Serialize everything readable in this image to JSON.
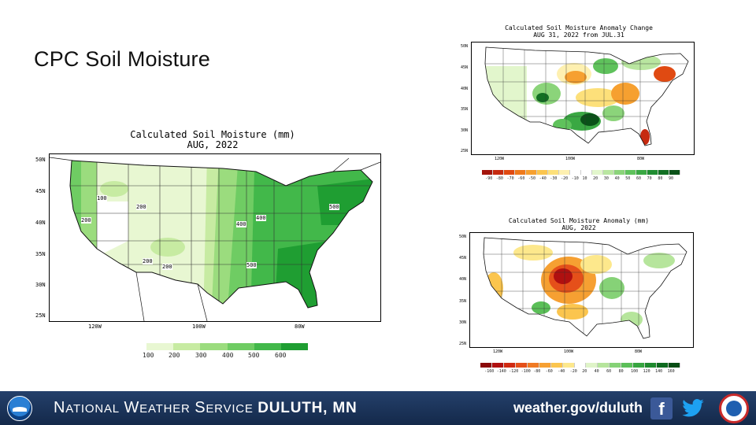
{
  "slide": {
    "title": "CPC Soil Moisture"
  },
  "maps": {
    "main": {
      "title_line1": "Calculated Soil Moisture (mm)",
      "title_line2": "AUG, 2022",
      "lat_labels": [
        "50N",
        "45N",
        "40N",
        "35N",
        "30N",
        "25N"
      ],
      "lon_labels": [
        "120W",
        "100W",
        "80W"
      ],
      "contour_labels": [
        "100",
        "200",
        "200",
        "200",
        "200",
        "400",
        "400",
        "500",
        "500"
      ],
      "legend_values": [
        "100",
        "200",
        "300",
        "400",
        "500",
        "600"
      ],
      "legend_colors": [
        "#e8f7d2",
        "#c7eba2",
        "#9bdc7e",
        "#6fcc63",
        "#42b84a",
        "#1f9e32"
      ]
    },
    "change": {
      "title_line1": "Calculated Soil Moisture Anomaly Change",
      "title_line2": "AUG 31, 2022 from JUL.31",
      "lat_labels": [
        "50N",
        "45N",
        "40N",
        "35N",
        "30N",
        "25N"
      ],
      "lon_labels": [
        "120W",
        "100W",
        "80W"
      ],
      "legend_values": [
        "-90",
        "-80",
        "-70",
        "-60",
        "-50",
        "-40",
        "-30",
        "-20",
        "-10",
        "10",
        "20",
        "30",
        "40",
        "50",
        "60",
        "70",
        "80",
        "90"
      ],
      "legend_colors": [
        "#a3140c",
        "#c62a10",
        "#e04a12",
        "#ef7a1c",
        "#f6a030",
        "#fbc54e",
        "#fde07a",
        "#fef0b0",
        "#ffffff",
        "#ffffff",
        "#e2f6cc",
        "#b9e6a0",
        "#8bd47a",
        "#5fc25c",
        "#3aa843",
        "#208c31",
        "#127023",
        "#0a5218"
      ]
    },
    "anomaly": {
      "title_line1": "Calculated Soil Moisture Anomaly (mm)",
      "title_line2": "AUG, 2022",
      "lat_labels": [
        "50N",
        "45N",
        "40N",
        "35N",
        "30N",
        "25N"
      ],
      "lon_labels": [
        "120W",
        "100W",
        "80W"
      ],
      "legend_values": [
        "-160",
        "-140",
        "-120",
        "-100",
        "-80",
        "-60",
        "-40",
        "-20",
        "20",
        "40",
        "60",
        "80",
        "100",
        "120",
        "140",
        "160"
      ],
      "legend_colors": [
        "#8b0a0a",
        "#b01010",
        "#d02a12",
        "#e5501a",
        "#f07a24",
        "#f6a032",
        "#fbc54e",
        "#fde88c",
        "#ffffff",
        "#dff4c8",
        "#b6e59c",
        "#86d277",
        "#5bbf58",
        "#37a540",
        "#1f8a2e",
        "#0e6b1f",
        "#064d14"
      ]
    }
  },
  "footer": {
    "org_prefix_1": "N",
    "org_rest_1": "ATIONAL",
    "org_prefix_2": "W",
    "org_rest_2": "EATHER",
    "org_prefix_3": "S",
    "org_rest_3": "ERVICE",
    "office": "DULUTH, MN",
    "url": "weather.gov/duluth"
  },
  "icons": [
    "noaa-logo",
    "facebook-icon",
    "twitter-icon",
    "nws-logo"
  ]
}
